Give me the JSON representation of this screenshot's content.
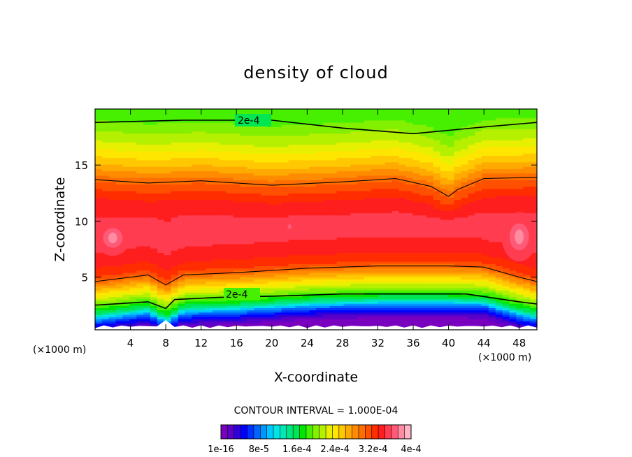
{
  "chart_data": {
    "type": "heatmap",
    "title": "density of cloud",
    "xlabel": "X-coordinate",
    "ylabel": "Z-coordinate",
    "x_unit": "(×1000 m)",
    "x_unit_right": "(×1000 m)",
    "xlim": [
      0,
      50
    ],
    "ylim": [
      0.3,
      20
    ],
    "x_ticks": [
      "4",
      "8",
      "12",
      "16",
      "20",
      "24",
      "28",
      "32",
      "36",
      "40",
      "44",
      "48"
    ],
    "y_ticks": [
      "5",
      "10",
      "15"
    ],
    "contour_labels": [
      "2e-4",
      "2e-4"
    ],
    "contour_interval": "CONTOUR INTERVAL = 1.000E-04",
    "colorbar": {
      "tick_labels": [
        "1e-16",
        "8e-5",
        "1.6e-4",
        "2.4e-4",
        "3.2e-4",
        "4e-4"
      ],
      "colors": [
        "#7a00c0",
        "#5a00c8",
        "#3000d8",
        "#0000ff",
        "#0030ff",
        "#0064ff",
        "#0096ff",
        "#00c8ff",
        "#00e6e6",
        "#00e6b4",
        "#00e682",
        "#00e650",
        "#00e600",
        "#46f000",
        "#82f000",
        "#b4f000",
        "#e6f000",
        "#ffe600",
        "#ffc800",
        "#ffaa00",
        "#ff8c00",
        "#ff6e00",
        "#ff5000",
        "#ff2d00",
        "#ff1e1e",
        "#ff3c50",
        "#ff5a78",
        "#ff8ca0",
        "#ffb4c8"
      ]
    },
    "profile": [
      {
        "z": 0.5,
        "v": 0.0
      },
      {
        "z": 1.0,
        "v": 2e-05
      },
      {
        "z": 1.5,
        "v": 5e-05
      },
      {
        "z": 2.0,
        "v": 9e-05
      },
      {
        "z": 2.5,
        "v": 0.00015
      },
      {
        "z": 3.0,
        "v": 0.00018
      },
      {
        "z": 4.0,
        "v": 0.00023
      },
      {
        "z": 5.0,
        "v": 0.00028
      },
      {
        "z": 6.0,
        "v": 0.000325
      },
      {
        "z": 8.0,
        "v": 0.000345
      },
      {
        "z": 10.0,
        "v": 0.00035
      },
      {
        "z": 12.0,
        "v": 0.00033
      },
      {
        "z": 13.5,
        "v": 0.0003
      },
      {
        "z": 15.0,
        "v": 0.00026
      },
      {
        "z": 17.0,
        "v": 0.00022
      },
      {
        "z": 19.0,
        "v": 0.00019
      },
      {
        "z": 20.0,
        "v": 0.00018
      }
    ],
    "contour_lines": [
      {
        "name": "top",
        "x": [
          0,
          10,
          20,
          28,
          36,
          44,
          50
        ],
        "z": [
          18.8,
          19.0,
          19.0,
          18.3,
          17.8,
          18.4,
          18.8
        ]
      },
      {
        "name": "upper",
        "x": [
          0,
          6,
          12,
          20,
          28,
          34,
          38,
          40,
          41,
          44,
          50
        ],
        "z": [
          13.7,
          13.4,
          13.6,
          13.2,
          13.5,
          13.8,
          13.1,
          12.2,
          12.8,
          13.8,
          13.9
        ]
      },
      {
        "name": "middle",
        "x": [
          0,
          6,
          8,
          10,
          16,
          24,
          32,
          40,
          44,
          48,
          50
        ],
        "z": [
          4.6,
          5.2,
          4.3,
          5.2,
          5.4,
          5.8,
          6.0,
          6.0,
          5.9,
          5.0,
          4.6
        ]
      },
      {
        "name": "lower",
        "x": [
          0,
          6,
          8,
          9,
          14,
          20,
          28,
          36,
          42,
          48,
          50
        ],
        "z": [
          2.5,
          2.8,
          2.2,
          3.0,
          3.2,
          3.3,
          3.5,
          3.5,
          3.5,
          2.8,
          2.6
        ]
      }
    ],
    "hotspots": [
      {
        "x": 2,
        "z": 8.5,
        "rx": 2.0,
        "rz": 1.6
      },
      {
        "x": 48,
        "z": 8.6,
        "rx": 2.0,
        "rz": 2.2
      },
      {
        "x": 22,
        "z": 9.5,
        "rx": 0.4,
        "rz": 0.4
      }
    ]
  }
}
